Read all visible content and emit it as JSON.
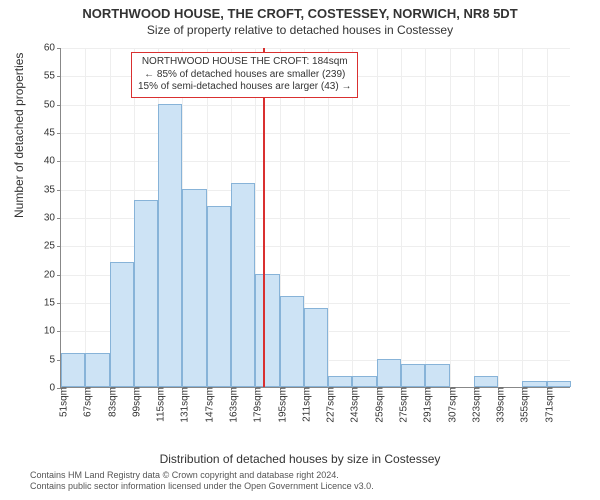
{
  "title_main": "NORTHWOOD HOUSE, THE CROFT, COSTESSEY, NORWICH, NR8 5DT",
  "title_sub": "Size of property relative to detached houses in Costessey",
  "y_axis_label": "Number of detached properties",
  "x_axis_label": "Distribution of detached houses by size in Costessey",
  "footer_line1": "Contains HM Land Registry data © Crown copyright and database right 2024.",
  "footer_line2": "Contains public sector information licensed under the Open Government Licence v3.0.",
  "chart": {
    "type": "bar",
    "ylim": [
      0,
      60
    ],
    "ytick_step": 5,
    "x_start": 51,
    "x_step": 16,
    "x_count": 21,
    "x_unit": "sqm",
    "values": [
      6,
      6,
      22,
      33,
      50,
      35,
      32,
      36,
      20,
      16,
      14,
      2,
      2,
      5,
      4,
      4,
      0,
      2,
      0,
      1,
      1
    ],
    "bar_fill": "#cde3f5",
    "bar_stroke": "#87b3d8",
    "grid_color": "#eeeeee",
    "background_color": "#ffffff",
    "reference_x": 184,
    "reference_color": "#d93030"
  },
  "callout": {
    "line1": "NORTHWOOD HOUSE THE CROFT: 184sqm",
    "line2": "← 85% of detached houses are smaller (239)",
    "line3": "15% of semi-detached houses are larger (43) →"
  }
}
